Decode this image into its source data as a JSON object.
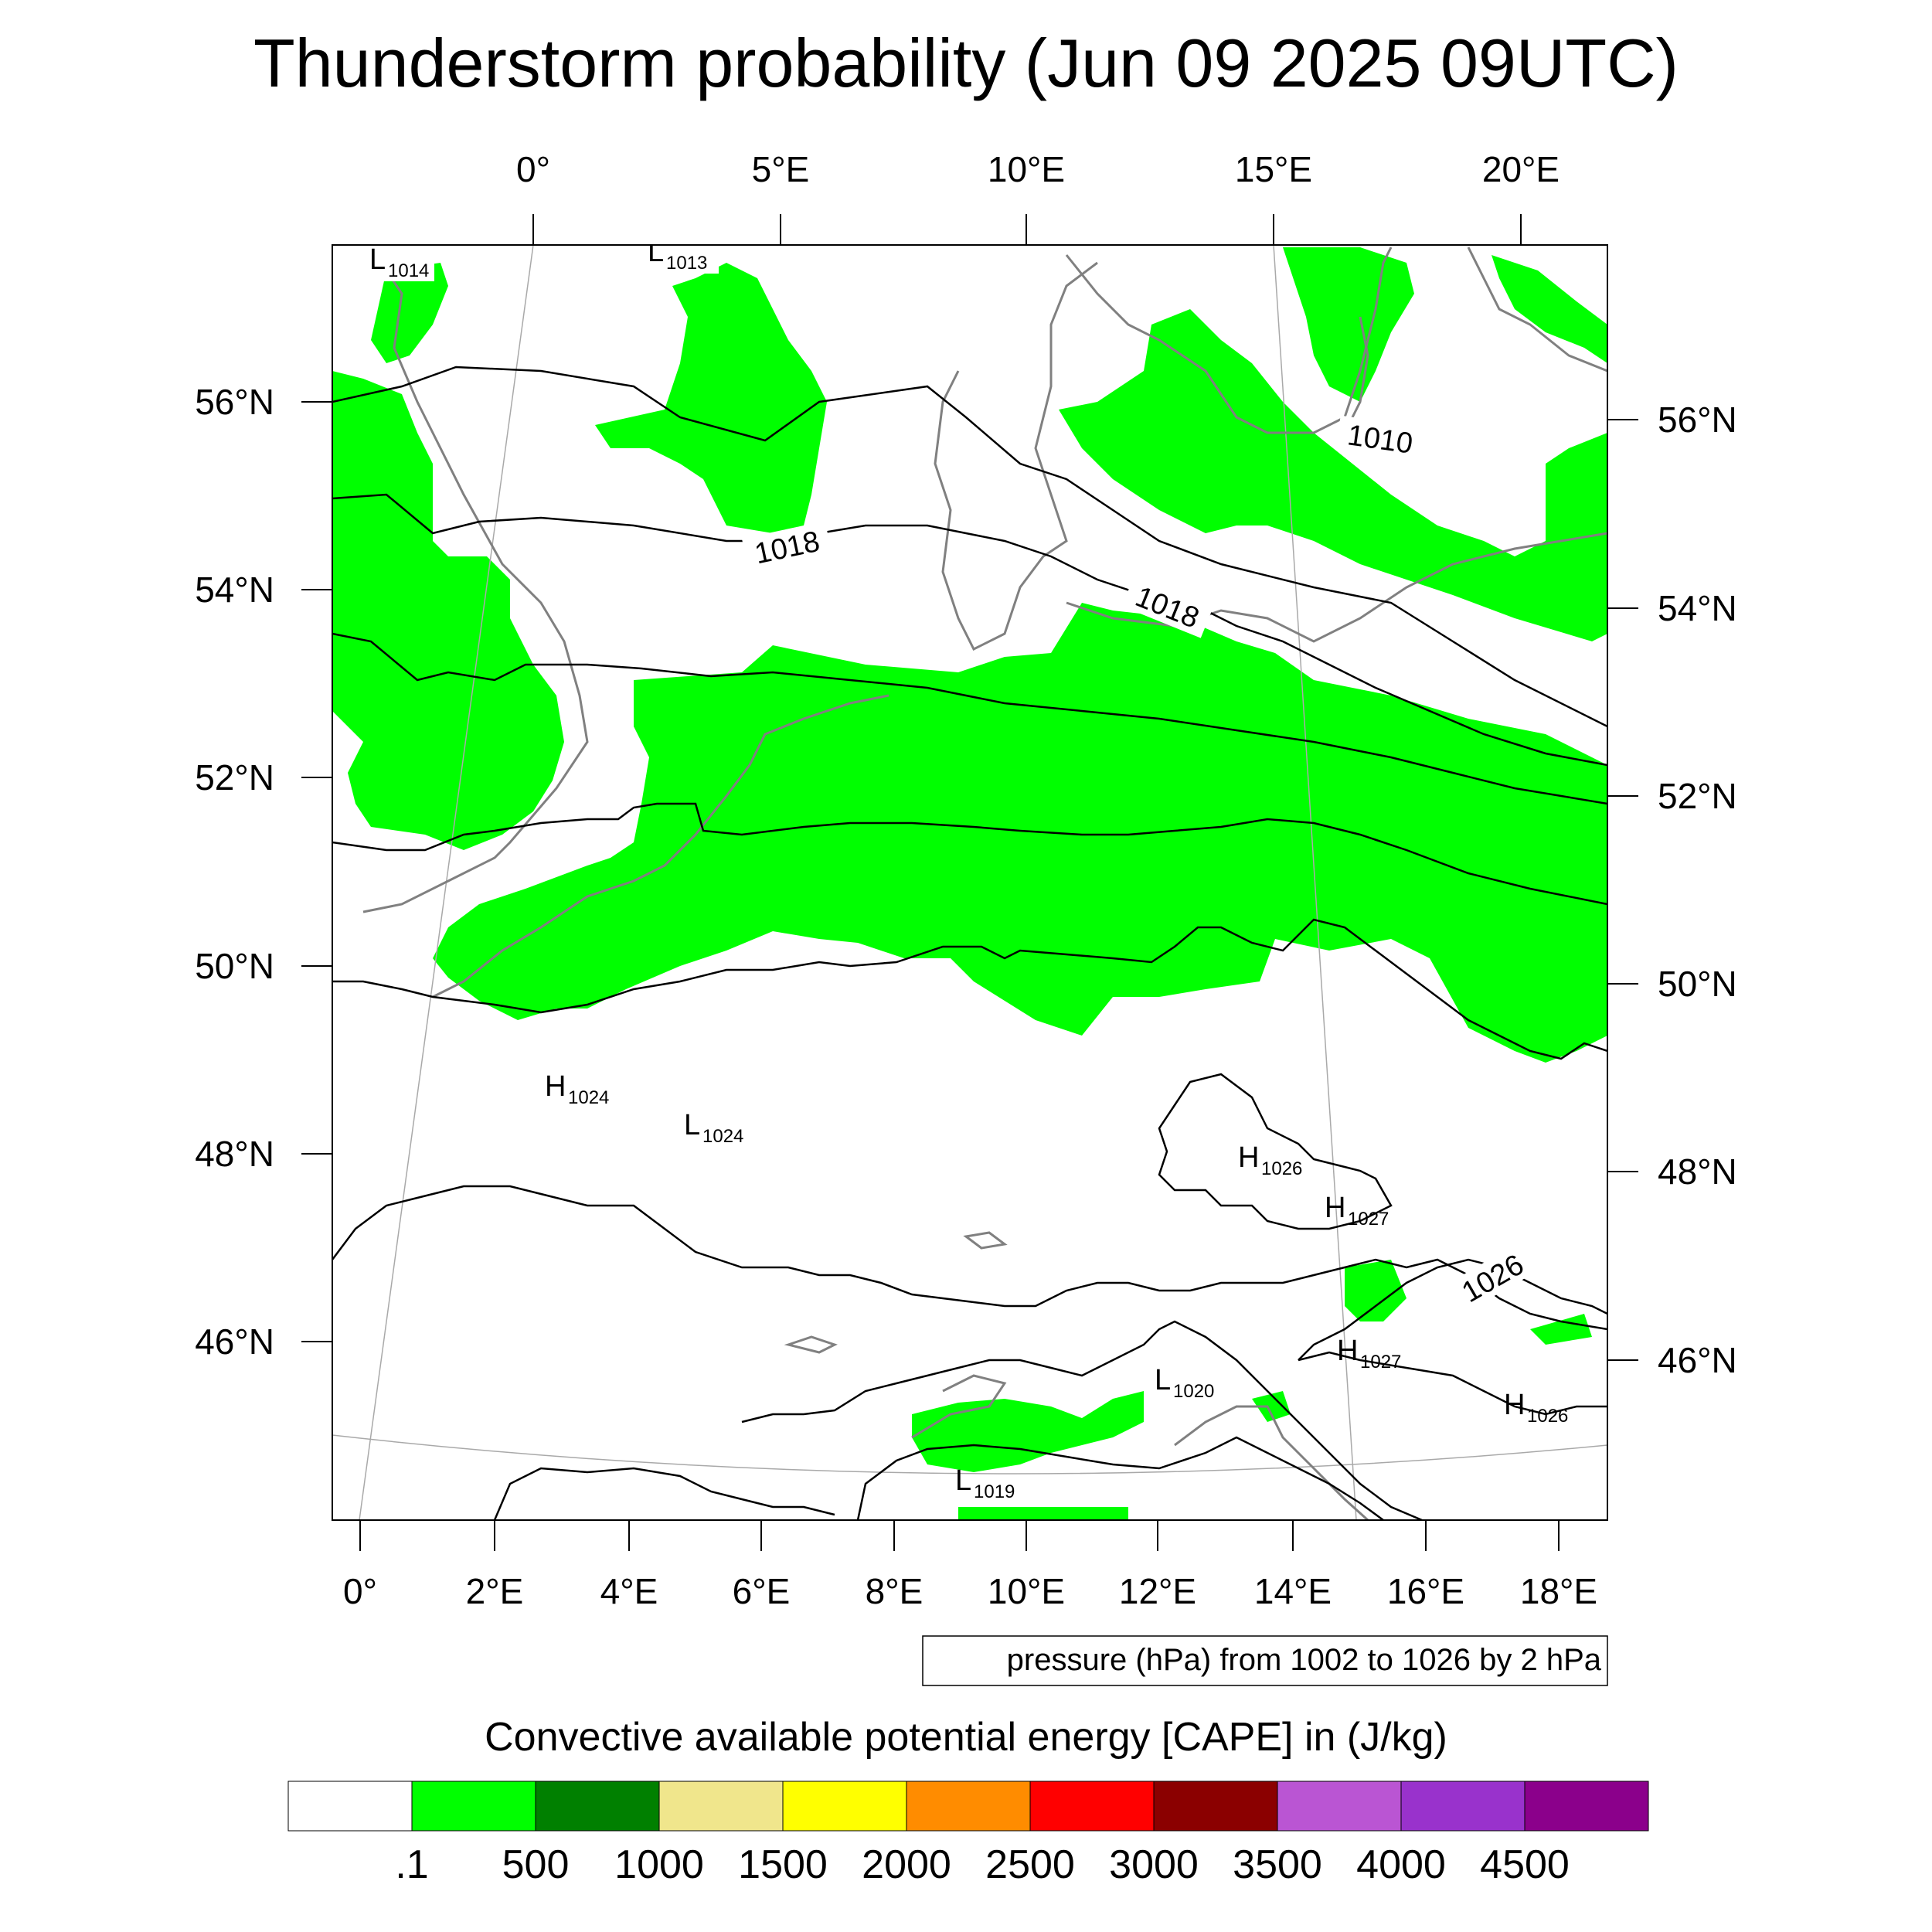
{
  "title": "Thunderstorm probability (Jun 09 2025 09UTC)",
  "top_lon_labels": [
    "0°",
    "5°E",
    "10°E",
    "15°E",
    "20°E"
  ],
  "bottom_lon_labels": [
    "0°",
    "2°E",
    "4°E",
    "6°E",
    "8°E",
    "10°E",
    "12°E",
    "14°E",
    "16°E",
    "18°E"
  ],
  "left_lat_labels": [
    "56°N",
    "54°N",
    "52°N",
    "50°N",
    "48°N",
    "46°N"
  ],
  "right_lat_labels": [
    "56°N",
    "54°N",
    "52°N",
    "50°N",
    "48°N",
    "46°N"
  ],
  "isobar_labels": [
    "1010",
    "1018",
    "1018",
    "1026"
  ],
  "pressure_centers": [
    {
      "kind": "L",
      "value": "1014"
    },
    {
      "kind": "L",
      "value": "1013"
    },
    {
      "kind": "H",
      "value": "1024"
    },
    {
      "kind": "L",
      "value": "1024"
    },
    {
      "kind": "H",
      "value": "1026"
    },
    {
      "kind": "H",
      "value": "1027"
    },
    {
      "kind": "H",
      "value": "1027"
    },
    {
      "kind": "L",
      "value": "1020"
    },
    {
      "kind": "H",
      "value": "1026"
    },
    {
      "kind": "L",
      "value": "1019"
    }
  ],
  "contour_info": "pressure (hPa) from 1002 to 1026 by 2 hPa",
  "colorbar_title": "Convective available potential energy [CAPE] in (J/kg)",
  "colorbar_colors": [
    "#ffffff",
    "#00ff00",
    "#008000",
    "#f0e68c",
    "#ffff00",
    "#ff8c00",
    "#ff0000",
    "#8b0000",
    "#ba55d3",
    "#9932cc",
    "#8b008b"
  ],
  "colorbar_labels": [
    ".1",
    "500",
    "1000",
    "1500",
    "2000",
    "2500",
    "3000",
    "3500",
    "4000",
    "4500"
  ],
  "colors": {
    "cape_fill": "#00ff00",
    "coastline": "#808080",
    "isobar": "#000000",
    "graticule": "#a9a9a9"
  }
}
